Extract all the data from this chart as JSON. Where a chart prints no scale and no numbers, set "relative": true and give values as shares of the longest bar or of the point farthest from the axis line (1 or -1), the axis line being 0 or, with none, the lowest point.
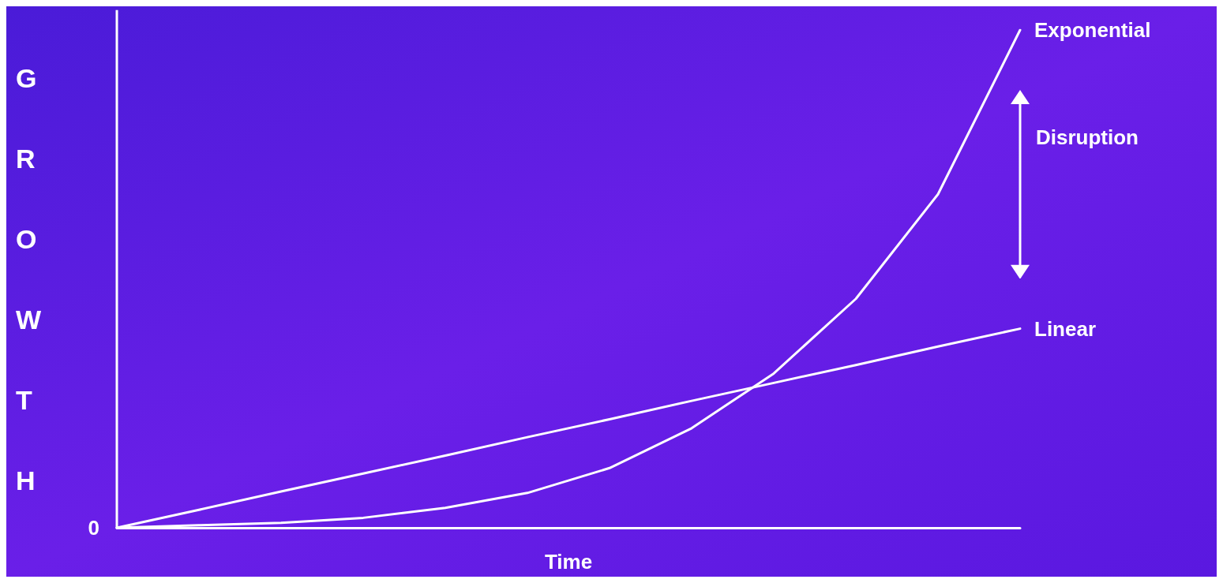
{
  "chart_data": {
    "type": "line",
    "relative": true,
    "xlabel": "Time",
    "ylabel": "GROWTH",
    "categories": [
      null,
      null,
      null,
      null,
      null,
      null,
      null,
      null,
      null,
      null,
      null,
      null
    ],
    "series": [
      {
        "name": "Exponential",
        "color": "#ffffff",
        "values": [
          0,
          0.005,
          0.01,
          0.02,
          0.04,
          0.07,
          0.12,
          0.2,
          0.31,
          0.46,
          0.67,
          1
        ]
      },
      {
        "name": "Linear",
        "color": "#ffffff",
        "values": [
          0,
          0.036,
          0.073,
          0.109,
          0.145,
          0.182,
          0.218,
          0.255,
          0.291,
          0.327,
          0.364,
          0.4
        ]
      }
    ],
    "annotations": [
      "0",
      "Disruption"
    ],
    "marker": "none",
    "line_style": "solid",
    "grid": false,
    "legend": false
  }
}
